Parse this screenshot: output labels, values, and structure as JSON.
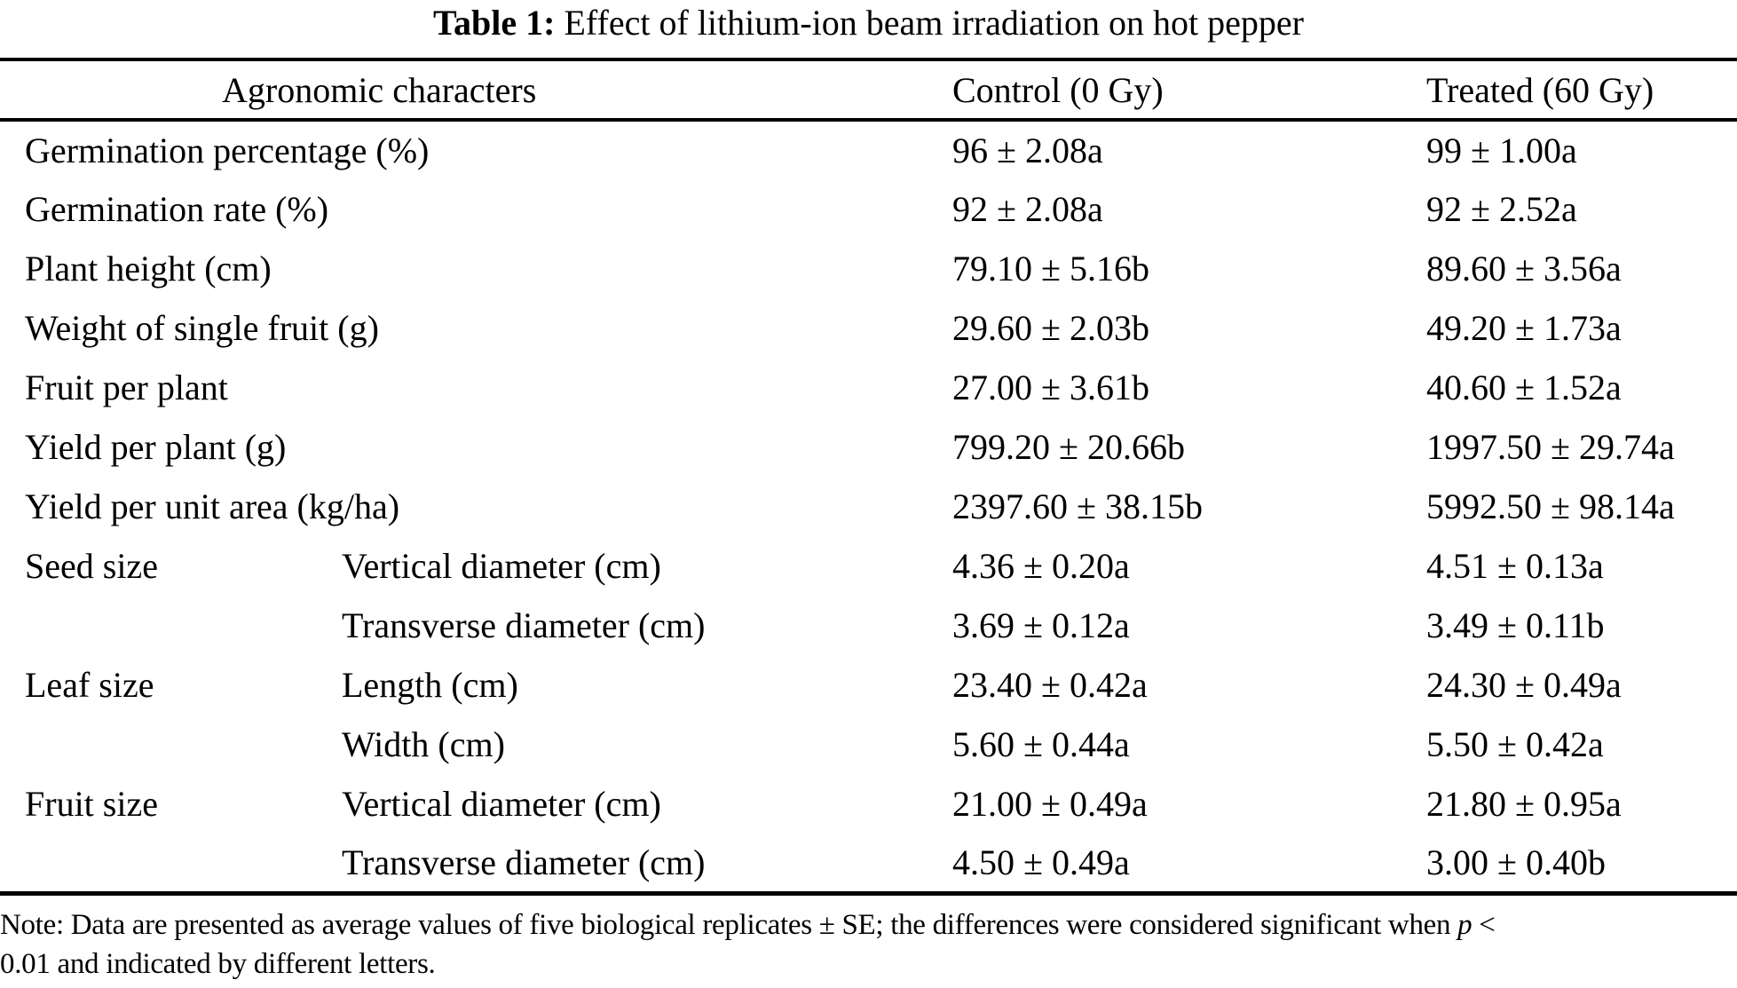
{
  "title": {
    "label": "Table 1:",
    "text": " Effect of lithium-ion beam irradiation on hot pepper"
  },
  "table": {
    "columns": [
      "Agronomic characters",
      "Control (0 Gy)",
      "Treated (60 Gy)"
    ],
    "rows": [
      {
        "character": "Germination percentage (%)",
        "sub": null,
        "control": "96 ± 2.08a",
        "treated": "99 ± 1.00a"
      },
      {
        "character": "Germination rate (%)",
        "sub": null,
        "control": "92 ± 2.08a",
        "treated": "92 ± 2.52a"
      },
      {
        "character": "Plant height (cm)",
        "sub": null,
        "control": "79.10 ± 5.16b",
        "treated": "89.60 ± 3.56a"
      },
      {
        "character": "Weight of single fruit (g)",
        "sub": null,
        "control": "29.60 ± 2.03b",
        "treated": "49.20 ± 1.73a"
      },
      {
        "character": "Fruit per plant",
        "sub": null,
        "control": "27.00 ± 3.61b",
        "treated": "40.60 ± 1.52a"
      },
      {
        "character": "Yield per plant (g)",
        "sub": null,
        "control": "799.20 ± 20.66b",
        "treated": "1997.50 ± 29.74a"
      },
      {
        "character": "Yield per unit area (kg/ha)",
        "sub": null,
        "control": "2397.60 ± 38.15b",
        "treated": "5992.50 ± 98.14a"
      },
      {
        "character": "Seed size",
        "sub": "Vertical diameter (cm)",
        "control": "4.36 ± 0.20a",
        "treated": "4.51 ± 0.13a"
      },
      {
        "character": "",
        "sub": "Transverse diameter (cm)",
        "control": "3.69 ± 0.12a",
        "treated": "3.49 ± 0.11b"
      },
      {
        "character": "Leaf size",
        "sub": "Length (cm)",
        "control": "23.40 ± 0.42a",
        "treated": "24.30 ± 0.49a"
      },
      {
        "character": "",
        "sub": "Width (cm)",
        "control": "5.60 ± 0.44a",
        "treated": "5.50 ± 0.42a"
      },
      {
        "character": "Fruit size",
        "sub": "Vertical diameter (cm)",
        "control": "21.00 ± 0.49a",
        "treated": "21.80 ± 0.95a"
      },
      {
        "character": "",
        "sub": "Transverse diameter (cm)",
        "control": "4.50 ± 0.49a",
        "treated": "3.00 ± 0.40b"
      }
    ]
  },
  "note": {
    "line1_before_italic": "Note: Data are presented as average values of five biological replicates ± SE; the differences were considered significant when ",
    "italic": "p",
    "line1_after_italic": " <",
    "line2": "0.01 and indicated by different letters."
  }
}
